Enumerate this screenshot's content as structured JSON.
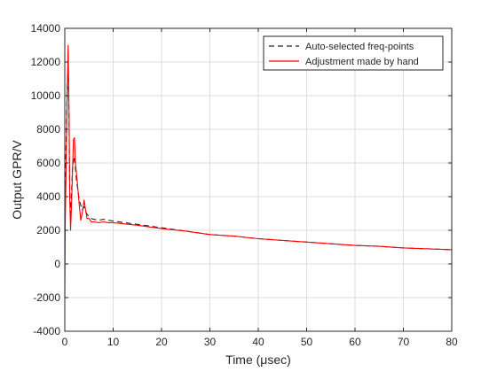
{
  "chart_data": {
    "type": "line",
    "xlabel": "Time (μsec)",
    "ylabel": "Output GPR/V",
    "xlim": [
      0,
      80
    ],
    "ylim": [
      -4000,
      14000
    ],
    "xticks": [
      0,
      10,
      20,
      30,
      40,
      50,
      60,
      70,
      80
    ],
    "yticks": [
      -4000,
      -2000,
      0,
      2000,
      4000,
      6000,
      8000,
      10000,
      12000,
      14000
    ],
    "grid": true,
    "legend_position": "top-right",
    "series": [
      {
        "name": "Auto-selected freq-points",
        "color": "#262626",
        "line_style": "dashed",
        "x": [
          0,
          0.1,
          0.3,
          0.5,
          0.7,
          0.9,
          1.0,
          1.2,
          1.4,
          1.6,
          2.0,
          2.4,
          3.0,
          3.6,
          4.0,
          4.5,
          5.0,
          5.5,
          6.0,
          7.0,
          8.0,
          9.0,
          10,
          15,
          20,
          25,
          30,
          35,
          40,
          45,
          50,
          55,
          60,
          65,
          70,
          75,
          80
        ],
        "y": [
          2000,
          5000,
          7500,
          10500,
          11800,
          8000,
          4500,
          3000,
          4200,
          5800,
          6400,
          5000,
          3800,
          3200,
          3400,
          3000,
          2800,
          2700,
          2650,
          2600,
          2650,
          2600,
          2550,
          2350,
          2150,
          1950,
          1750,
          1650,
          1500,
          1400,
          1300,
          1200,
          1100,
          1050,
          950,
          900,
          850
        ]
      },
      {
        "name": "Adjustment made by hand",
        "color": "#ff0000",
        "line_style": "solid",
        "x": [
          0,
          0.1,
          0.3,
          0.5,
          0.7,
          0.9,
          1.0,
          1.2,
          1.4,
          1.6,
          1.8,
          2.0,
          2.2,
          2.6,
          3.0,
          3.3,
          3.6,
          4.0,
          4.3,
          4.6,
          5.0,
          5.5,
          6.0,
          7.0,
          8.0,
          9.0,
          10,
          15,
          20,
          25,
          30,
          35,
          40,
          45,
          50,
          55,
          60,
          65,
          70,
          75,
          80
        ],
        "y": [
          -2000,
          2500,
          6000,
          10000,
          13000,
          8500,
          4000,
          2000,
          3500,
          5500,
          7400,
          7500,
          6000,
          4800,
          3500,
          2600,
          3000,
          3800,
          3200,
          2700,
          2700,
          2500,
          2500,
          2450,
          2500,
          2450,
          2450,
          2300,
          2100,
          1950,
          1750,
          1650,
          1500,
          1400,
          1300,
          1200,
          1100,
          1050,
          950,
          900,
          850
        ]
      }
    ]
  }
}
